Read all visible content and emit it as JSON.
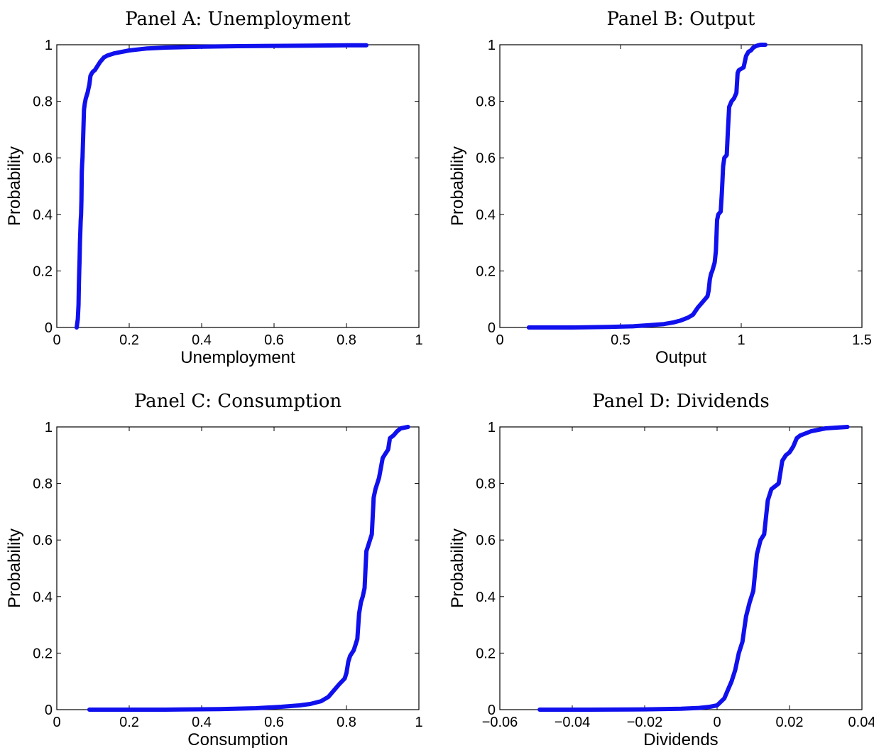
{
  "chart_data": [
    {
      "type": "line",
      "title": "Panel A: Unemployment",
      "xlabel": "Unemployment",
      "ylabel": "Probability",
      "xlim": [
        0,
        1
      ],
      "ylim": [
        0,
        1
      ],
      "xticks": [
        "0",
        "0.2",
        "0.4",
        "0.6",
        "0.8",
        "1"
      ],
      "yticks": [
        "0",
        "0.2",
        "0.4",
        "0.6",
        "0.8",
        "1"
      ],
      "series": [
        {
          "color": "#1010ee",
          "x": [
            0.055,
            0.058,
            0.06,
            0.061,
            0.062,
            0.063,
            0.064,
            0.066,
            0.067,
            0.068,
            0.069,
            0.07,
            0.071,
            0.072,
            0.074,
            0.075,
            0.077,
            0.08,
            0.085,
            0.09,
            0.093,
            0.095,
            0.097,
            0.1,
            0.105,
            0.11,
            0.12,
            0.13,
            0.14,
            0.16,
            0.2,
            0.25,
            0.3,
            0.4,
            0.5,
            0.6,
            0.7,
            0.8,
            0.855
          ],
          "y": [
            0.0,
            0.03,
            0.08,
            0.15,
            0.2,
            0.24,
            0.3,
            0.38,
            0.4,
            0.45,
            0.55,
            0.58,
            0.6,
            0.64,
            0.72,
            0.77,
            0.79,
            0.81,
            0.83,
            0.86,
            0.89,
            0.895,
            0.9,
            0.905,
            0.91,
            0.92,
            0.94,
            0.955,
            0.962,
            0.97,
            0.98,
            0.987,
            0.99,
            0.993,
            0.995,
            0.996,
            0.997,
            0.998,
            0.998
          ]
        }
      ]
    },
    {
      "type": "line",
      "title": "Panel B: Output",
      "xlabel": "Output",
      "ylabel": "Probability",
      "xlim": [
        0,
        1.5
      ],
      "ylim": [
        0,
        1
      ],
      "xticks": [
        "0",
        "0.5",
        "1",
        "1.5"
      ],
      "yticks": [
        "0",
        "0.2",
        "0.4",
        "0.6",
        "0.8",
        "1"
      ],
      "series": [
        {
          "color": "#1010ee",
          "x": [
            0.12,
            0.3,
            0.45,
            0.55,
            0.62,
            0.68,
            0.72,
            0.75,
            0.78,
            0.8,
            0.82,
            0.84,
            0.86,
            0.865,
            0.87,
            0.875,
            0.88,
            0.89,
            0.895,
            0.9,
            0.905,
            0.91,
            0.915,
            0.92,
            0.925,
            0.93,
            0.935,
            0.94,
            0.945,
            0.95,
            0.955,
            0.96,
            0.97,
            0.98,
            0.985,
            0.99,
            1.0,
            1.01,
            1.02,
            1.03,
            1.04,
            1.05,
            1.06,
            1.07,
            1.08,
            1.1
          ],
          "y": [
            0.0,
            0.0,
            0.002,
            0.004,
            0.008,
            0.012,
            0.018,
            0.025,
            0.035,
            0.045,
            0.07,
            0.09,
            0.11,
            0.13,
            0.17,
            0.19,
            0.2,
            0.23,
            0.27,
            0.38,
            0.4,
            0.405,
            0.41,
            0.48,
            0.57,
            0.6,
            0.605,
            0.61,
            0.7,
            0.78,
            0.79,
            0.8,
            0.81,
            0.83,
            0.9,
            0.91,
            0.915,
            0.92,
            0.96,
            0.975,
            0.98,
            0.99,
            0.995,
            0.998,
            1.0,
            1.0
          ]
        }
      ]
    },
    {
      "type": "line",
      "title": "Panel C: Consumption",
      "xlabel": "Consumption",
      "ylabel": "Probability",
      "xlim": [
        0,
        1
      ],
      "ylim": [
        0,
        1
      ],
      "xticks": [
        "0",
        "0.2",
        "0.4",
        "0.6",
        "0.8",
        "1"
      ],
      "yticks": [
        "0",
        "0.2",
        "0.4",
        "0.6",
        "0.8",
        "1"
      ],
      "series": [
        {
          "color": "#1010ee",
          "x": [
            0.09,
            0.3,
            0.45,
            0.55,
            0.62,
            0.67,
            0.7,
            0.73,
            0.75,
            0.76,
            0.78,
            0.795,
            0.8,
            0.805,
            0.81,
            0.82,
            0.825,
            0.83,
            0.835,
            0.84,
            0.845,
            0.85,
            0.855,
            0.86,
            0.865,
            0.87,
            0.875,
            0.88,
            0.885,
            0.89,
            0.9,
            0.905,
            0.91,
            0.915,
            0.92,
            0.93,
            0.94,
            0.95,
            0.97
          ],
          "y": [
            0.0,
            0.0,
            0.002,
            0.005,
            0.01,
            0.015,
            0.02,
            0.03,
            0.045,
            0.06,
            0.09,
            0.11,
            0.13,
            0.17,
            0.19,
            0.21,
            0.23,
            0.25,
            0.34,
            0.38,
            0.4,
            0.43,
            0.56,
            0.58,
            0.6,
            0.62,
            0.75,
            0.78,
            0.8,
            0.82,
            0.89,
            0.9,
            0.91,
            0.92,
            0.96,
            0.97,
            0.985,
            0.995,
            1.0
          ]
        }
      ]
    },
    {
      "type": "line",
      "title": "Panel D: Dividends",
      "xlabel": "Dividends",
      "ylabel": "Probability",
      "xlim": [
        -0.06,
        0.04
      ],
      "ylim": [
        0,
        1
      ],
      "xticks": [
        "−0.06",
        "−0.04",
        "−0.02",
        "0",
        "0.02",
        "0.04"
      ],
      "yticks": [
        "0",
        "0.2",
        "0.4",
        "0.6",
        "0.8",
        "1"
      ],
      "series": [
        {
          "color": "#1010ee",
          "x": [
            -0.049,
            -0.035,
            -0.02,
            -0.01,
            -0.005,
            -0.002,
            0.0,
            0.002,
            0.003,
            0.004,
            0.005,
            0.006,
            0.007,
            0.008,
            0.009,
            0.01,
            0.011,
            0.012,
            0.013,
            0.014,
            0.015,
            0.016,
            0.017,
            0.018,
            0.019,
            0.02,
            0.021,
            0.022,
            0.023,
            0.024,
            0.026,
            0.03,
            0.036
          ],
          "y": [
            0.0,
            0.0,
            0.001,
            0.003,
            0.006,
            0.01,
            0.015,
            0.04,
            0.07,
            0.1,
            0.14,
            0.2,
            0.24,
            0.33,
            0.38,
            0.42,
            0.55,
            0.6,
            0.62,
            0.74,
            0.78,
            0.79,
            0.8,
            0.88,
            0.9,
            0.91,
            0.93,
            0.96,
            0.97,
            0.975,
            0.985,
            0.995,
            1.0
          ]
        }
      ]
    }
  ]
}
